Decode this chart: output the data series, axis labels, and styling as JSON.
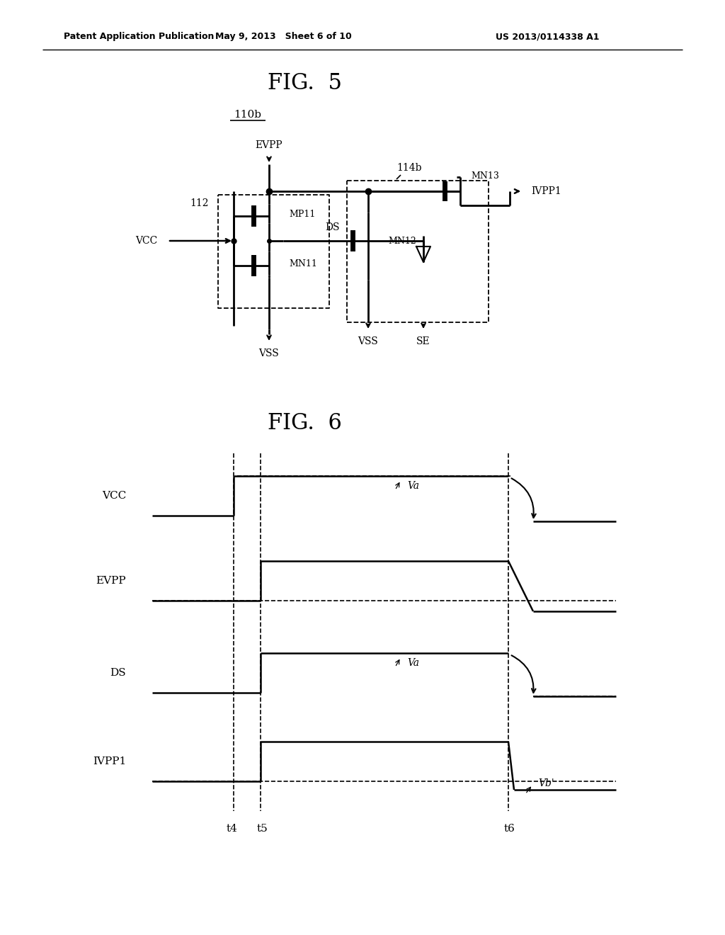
{
  "header_left": "Patent Application Publication",
  "header_mid": "May 9, 2013   Sheet 6 of 10",
  "header_right": "US 2013/0114338 A1",
  "fig5_title": "FIG.  5",
  "fig6_title": "FIG.  6",
  "label_110b": "110b",
  "background_color": "#ffffff",
  "line_color": "#000000",
  "text_color": "#000000"
}
